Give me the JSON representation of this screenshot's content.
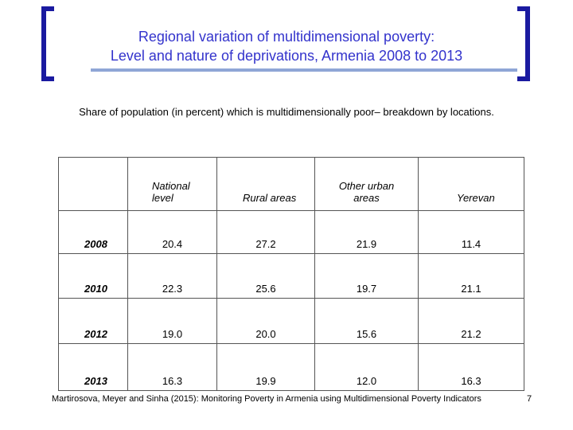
{
  "header": {
    "title": [
      "Regional variation of multidimensional poverty:",
      "Level and nature of deprivations, Armenia 2008 to 2013"
    ],
    "subtitle": "Share of population (in percent) which is multidimensionally poor– breakdown by locations."
  },
  "table": {
    "columns": [
      "National level",
      "Rural areas",
      "Other urban areas",
      "Yerevan"
    ],
    "rows": [
      [
        "2008",
        "20.4",
        "27.2",
        "21.9",
        "11.4"
      ],
      [
        "2010",
        "22.3",
        "25.6",
        "19.7",
        "21.1"
      ],
      [
        "2012",
        "19.0",
        "20.0",
        "15.6",
        "21.2"
      ],
      [
        "2013",
        "16.3",
        "19.9",
        "12.0",
        "16.3"
      ]
    ]
  },
  "footer": {
    "citation": "Martirosova, Meyer and Sinha (2015): Monitoring Poverty in Armenia using Multidimensional Poverty Indicators",
    "page": "7"
  }
}
